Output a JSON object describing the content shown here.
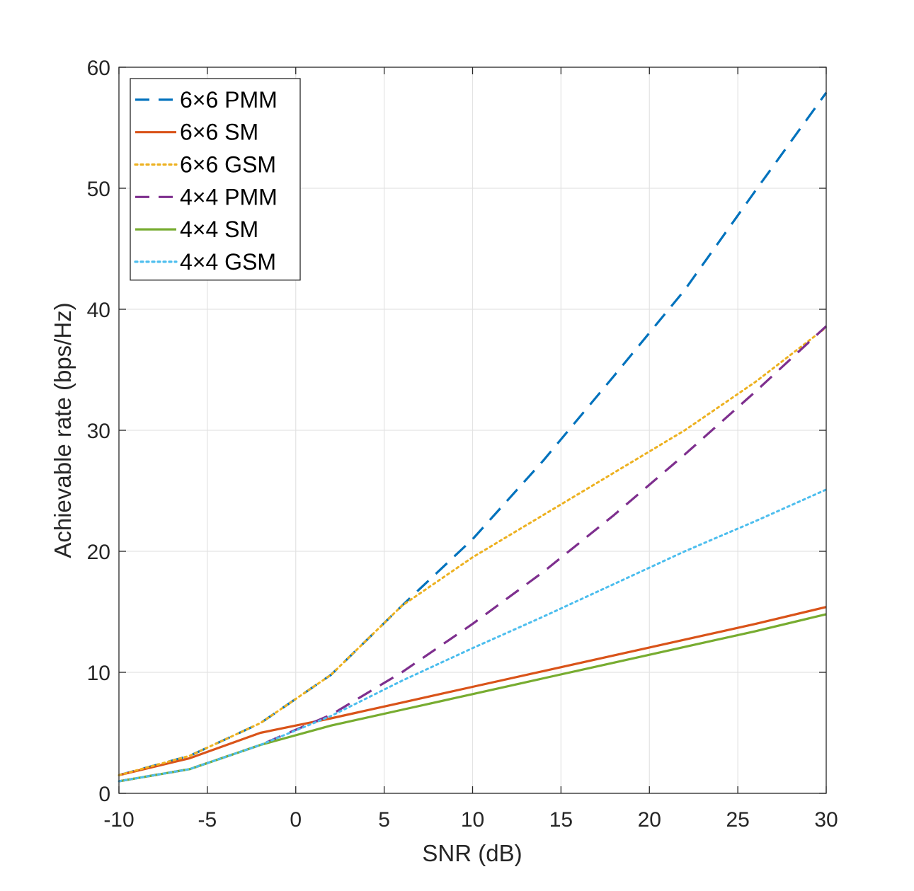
{
  "chart_data": {
    "type": "line",
    "title": "",
    "xlabel": "SNR (dB)",
    "ylabel": "Achievable rate (bps/Hz)",
    "xlim": [
      -10,
      30
    ],
    "ylim": [
      0,
      60
    ],
    "xticks": [
      -10,
      -5,
      0,
      5,
      10,
      15,
      20,
      25,
      30
    ],
    "yticks": [
      0,
      10,
      20,
      30,
      40,
      50,
      60
    ],
    "xtick_labels": [
      "-10",
      "-5",
      "0",
      "5",
      "10",
      "15",
      "20",
      "25",
      "30"
    ],
    "ytick_labels": [
      "0",
      "10",
      "20",
      "30",
      "40",
      "50",
      "60"
    ],
    "grid": true,
    "legend_position": "top-left",
    "series": [
      {
        "name": "6×6 PMM",
        "color": "#0072BD",
        "dash": "dashed",
        "x": [
          -10,
          -6,
          -2,
          2,
          6,
          10,
          14,
          18,
          22,
          26,
          30
        ],
        "y": [
          1.5,
          3.1,
          5.8,
          9.8,
          15.5,
          21.0,
          27.5,
          34.5,
          41.6,
          49.8,
          57.9
        ]
      },
      {
        "name": "6×6 SM",
        "color": "#D95319",
        "dash": "solid",
        "x": [
          -10,
          -6,
          -2,
          0,
          2,
          6,
          10,
          14,
          18,
          22,
          26,
          30
        ],
        "y": [
          1.5,
          2.9,
          5.0,
          5.6,
          6.2,
          7.5,
          8.8,
          10.1,
          11.4,
          12.7,
          14.0,
          15.4
        ]
      },
      {
        "name": "6×6 GSM",
        "color": "#EDB120",
        "dash": "dotted",
        "x": [
          -10,
          -6,
          -2,
          2,
          6,
          10,
          14,
          18,
          22,
          26,
          30
        ],
        "y": [
          1.5,
          3.1,
          5.8,
          9.8,
          15.5,
          19.5,
          23.0,
          26.5,
          30.0,
          34.0,
          38.5
        ]
      },
      {
        "name": "4×4 PMM",
        "color": "#7E2F8E",
        "dash": "dashed",
        "x": [
          -10,
          -6,
          -2,
          2,
          6,
          10,
          14,
          18,
          22,
          26,
          30
        ],
        "y": [
          1.0,
          2.0,
          4.0,
          6.5,
          10.0,
          14.0,
          18.3,
          23.0,
          28.0,
          33.2,
          38.6
        ]
      },
      {
        "name": "4×4 SM",
        "color": "#77AC30",
        "dash": "solid",
        "x": [
          -10,
          -6,
          -2,
          2,
          6,
          10,
          14,
          18,
          22,
          26,
          30
        ],
        "y": [
          1.0,
          2.0,
          4.0,
          5.6,
          6.9,
          8.2,
          9.5,
          10.8,
          12.1,
          13.4,
          14.8
        ]
      },
      {
        "name": "4×4 GSM",
        "color": "#4DBEEE",
        "dash": "dotted",
        "x": [
          -10,
          -6,
          -2,
          2,
          6,
          10,
          14,
          18,
          22,
          26,
          30
        ],
        "y": [
          1.0,
          2.0,
          4.0,
          6.4,
          9.3,
          12.0,
          14.6,
          17.3,
          20.0,
          22.5,
          25.1
        ]
      }
    ]
  }
}
